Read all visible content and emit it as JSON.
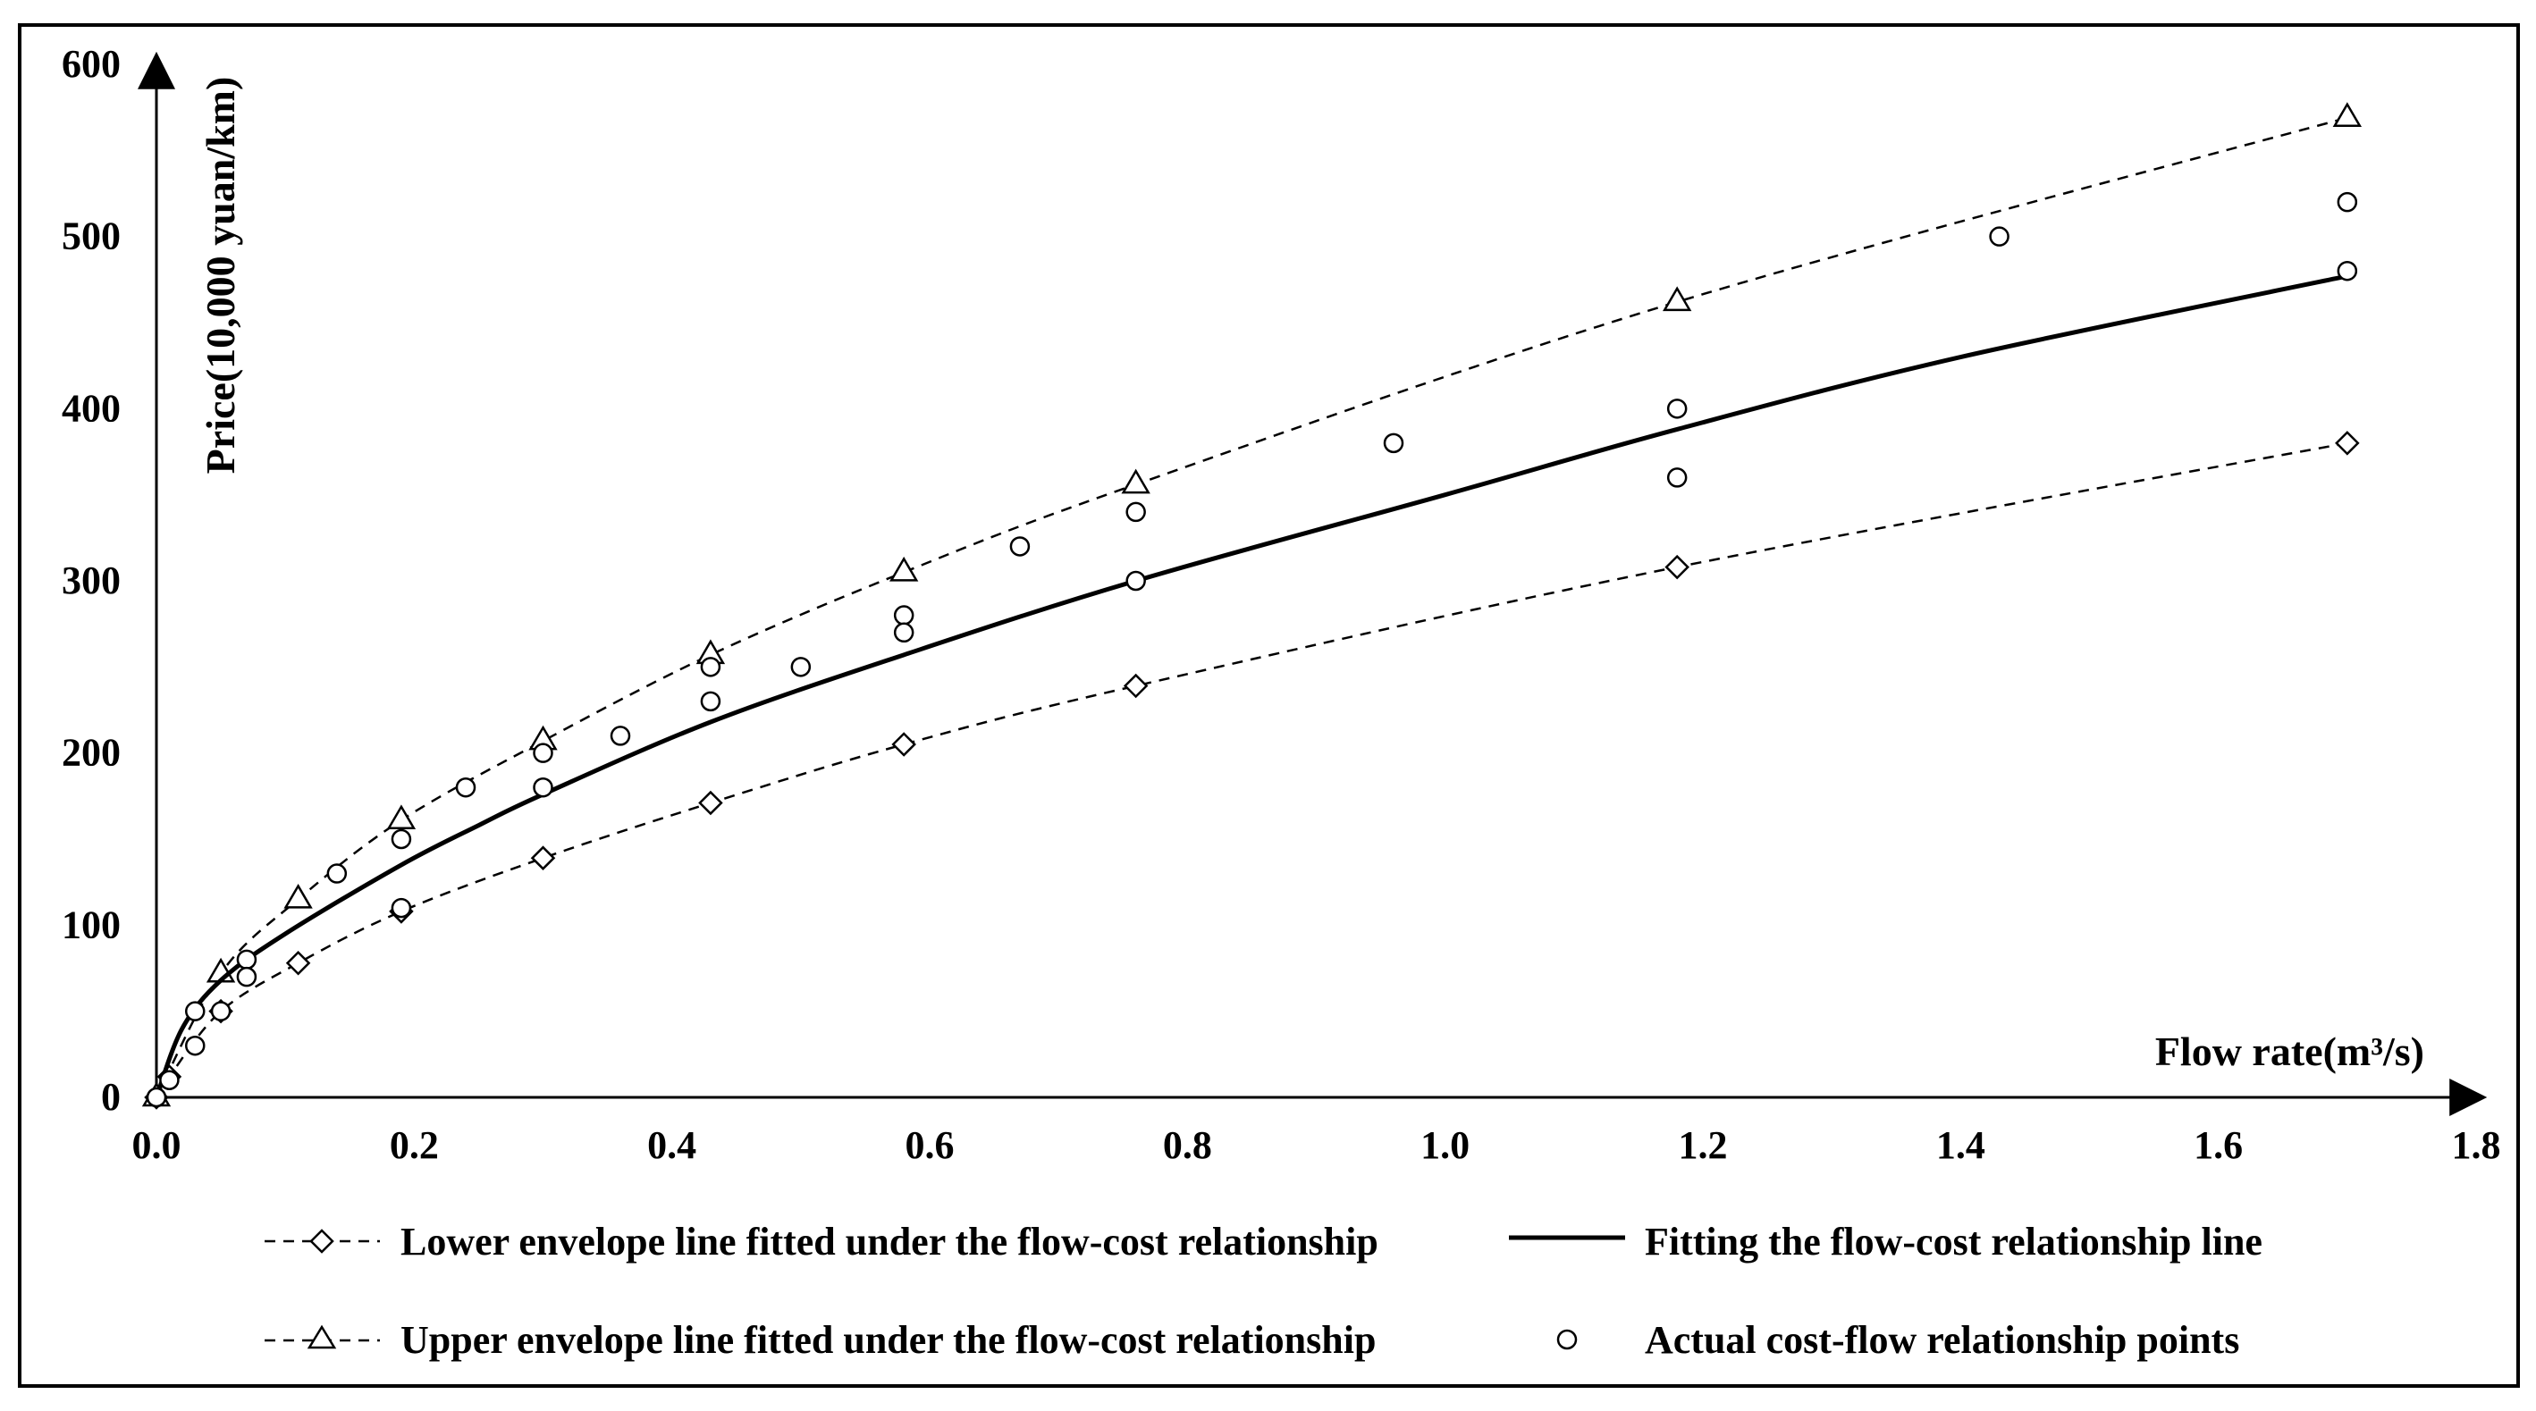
{
  "chart_data": {
    "type": "line",
    "title": "",
    "xlabel": "Flow rate(m³/s)",
    "ylabel": "Price(10,000 yuan/km)",
    "xlim": [
      0,
      1.8
    ],
    "ylim": [
      0,
      600
    ],
    "x_ticks": [
      "0.0",
      "0.2",
      "0.4",
      "0.6",
      "0.8",
      "1.0",
      "1.2",
      "1.4",
      "1.6",
      "1.8"
    ],
    "y_ticks": [
      "0",
      "100",
      "200",
      "300",
      "400",
      "500",
      "600"
    ],
    "grid": false,
    "legend_position": "bottom",
    "series": [
      {
        "name": "Lower envelope line fitted under the flow-cost relationship",
        "style": "dashed",
        "marker": "diamond",
        "points": [
          [
            0.0,
            0
          ],
          [
            0.01,
            12
          ],
          [
            0.05,
            50
          ],
          [
            0.11,
            78
          ],
          [
            0.19,
            108
          ],
          [
            0.3,
            139
          ],
          [
            0.43,
            171
          ],
          [
            0.58,
            205
          ],
          [
            0.76,
            239
          ],
          [
            1.18,
            308
          ],
          [
            1.7,
            380
          ]
        ]
      },
      {
        "name": "Upper envelope line fitted under the flow-cost relationship",
        "style": "dashed",
        "marker": "triangle",
        "points": [
          [
            0.0,
            0
          ],
          [
            0.05,
            72
          ],
          [
            0.11,
            115
          ],
          [
            0.19,
            161
          ],
          [
            0.3,
            207
          ],
          [
            0.43,
            257
          ],
          [
            0.58,
            305
          ],
          [
            0.76,
            356
          ],
          [
            1.18,
            462
          ],
          [
            1.7,
            569
          ]
        ]
      },
      {
        "name": "Fitting the flow-cost relationship line",
        "style": "solid",
        "marker": "none",
        "points": [
          [
            0.0,
            0
          ],
          [
            0.02,
            40
          ],
          [
            0.05,
            68
          ],
          [
            0.1,
            95
          ],
          [
            0.19,
            135
          ],
          [
            0.25,
            158
          ],
          [
            0.3,
            176
          ],
          [
            0.43,
            218
          ],
          [
            0.58,
            257
          ],
          [
            0.76,
            300
          ],
          [
            1.0,
            350
          ],
          [
            1.18,
            388
          ],
          [
            1.4,
            430
          ],
          [
            1.7,
            477
          ]
        ]
      },
      {
        "name": "Actual cost-flow relationship points",
        "style": "none",
        "marker": "circle",
        "points": [
          [
            0.0,
            0
          ],
          [
            0.01,
            10
          ],
          [
            0.03,
            50
          ],
          [
            0.03,
            30
          ],
          [
            0.05,
            50
          ],
          [
            0.07,
            80
          ],
          [
            0.07,
            70
          ],
          [
            0.14,
            130
          ],
          [
            0.19,
            150
          ],
          [
            0.19,
            110
          ],
          [
            0.24,
            180
          ],
          [
            0.3,
            200
          ],
          [
            0.3,
            180
          ],
          [
            0.36,
            210
          ],
          [
            0.43,
            250
          ],
          [
            0.43,
            230
          ],
          [
            0.5,
            250
          ],
          [
            0.58,
            280
          ],
          [
            0.58,
            270
          ],
          [
            0.67,
            320
          ],
          [
            0.76,
            340
          ],
          [
            0.76,
            300
          ],
          [
            0.96,
            380
          ],
          [
            1.18,
            400
          ],
          [
            1.18,
            360
          ],
          [
            1.43,
            500
          ],
          [
            1.7,
            520
          ],
          [
            1.7,
            480
          ]
        ]
      }
    ]
  }
}
